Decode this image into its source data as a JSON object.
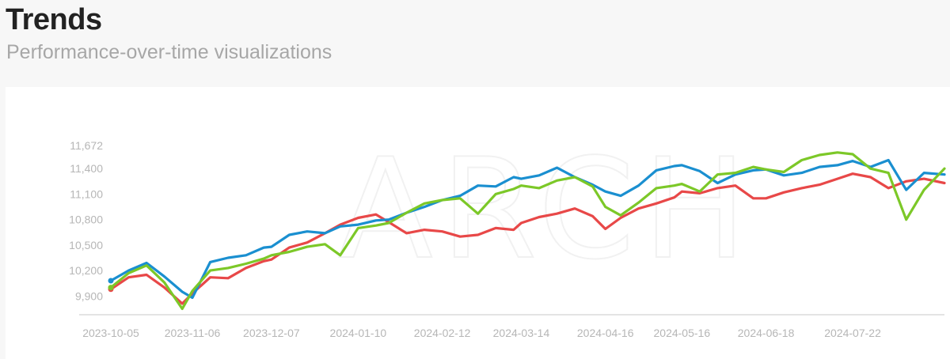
{
  "header": {
    "title": "Trends",
    "subtitle": "Performance-over-time visualizations"
  },
  "chart_data": {
    "type": "line",
    "title": "",
    "xlabel": "",
    "ylabel": "",
    "grid": false,
    "legend": "none",
    "x_ticks": [
      "2023-10-05",
      "2023-11-06",
      "2023-12-07",
      "2024-01-10",
      "2024-02-12",
      "2024-03-14",
      "2024-04-16",
      "2024-05-16",
      "2024-06-18",
      "2024-07-22"
    ],
    "y_ticks": [
      9900,
      10200,
      10500,
      10800,
      11100,
      11400,
      11672
    ],
    "y_tick_labels": [
      "9,900",
      "10,200",
      "10,500",
      "10,800",
      "11,100",
      "11,400",
      "11,672"
    ],
    "ylim": [
      9680,
      11672
    ],
    "x_range": [
      "2023-10-05",
      "2024-08-27"
    ],
    "watermark": "ARCH",
    "series": [
      {
        "color": "#e84848",
        "points": [
          [
            "2023-10-05",
            9980
          ],
          [
            "2023-10-12",
            10120
          ],
          [
            "2023-10-19",
            10150
          ],
          [
            "2023-10-26",
            10000
          ],
          [
            "2023-11-02",
            9810
          ],
          [
            "2023-11-06",
            9930
          ],
          [
            "2023-11-13",
            10120
          ],
          [
            "2023-11-20",
            10110
          ],
          [
            "2023-11-27",
            10230
          ],
          [
            "2023-12-04",
            10310
          ],
          [
            "2023-12-07",
            10330
          ],
          [
            "2023-12-14",
            10470
          ],
          [
            "2023-12-21",
            10530
          ],
          [
            "2023-12-28",
            10640
          ],
          [
            "2024-01-03",
            10740
          ],
          [
            "2024-01-10",
            10820
          ],
          [
            "2024-01-17",
            10860
          ],
          [
            "2024-01-22",
            10770
          ],
          [
            "2024-01-29",
            10640
          ],
          [
            "2024-02-05",
            10680
          ],
          [
            "2024-02-12",
            10660
          ],
          [
            "2024-02-19",
            10600
          ],
          [
            "2024-02-26",
            10620
          ],
          [
            "2024-03-04",
            10700
          ],
          [
            "2024-03-11",
            10680
          ],
          [
            "2024-03-14",
            10760
          ],
          [
            "2024-03-21",
            10830
          ],
          [
            "2024-03-28",
            10870
          ],
          [
            "2024-04-04",
            10930
          ],
          [
            "2024-04-11",
            10840
          ],
          [
            "2024-04-16",
            10690
          ],
          [
            "2024-04-22",
            10820
          ],
          [
            "2024-04-29",
            10930
          ],
          [
            "2024-05-06",
            10990
          ],
          [
            "2024-05-13",
            11060
          ],
          [
            "2024-05-16",
            11130
          ],
          [
            "2024-05-23",
            11110
          ],
          [
            "2024-05-30",
            11170
          ],
          [
            "2024-06-06",
            11200
          ],
          [
            "2024-06-13",
            11050
          ],
          [
            "2024-06-18",
            11050
          ],
          [
            "2024-06-25",
            11120
          ],
          [
            "2024-07-02",
            11170
          ],
          [
            "2024-07-09",
            11210
          ],
          [
            "2024-07-16",
            11280
          ],
          [
            "2024-07-22",
            11340
          ],
          [
            "2024-07-29",
            11300
          ],
          [
            "2024-08-05",
            11170
          ],
          [
            "2024-08-12",
            11250
          ],
          [
            "2024-08-19",
            11280
          ],
          [
            "2024-08-27",
            11230
          ]
        ]
      },
      {
        "color": "#1a8fd0",
        "points": [
          [
            "2023-10-05",
            10080
          ],
          [
            "2023-10-12",
            10200
          ],
          [
            "2023-10-19",
            10290
          ],
          [
            "2023-10-26",
            10130
          ],
          [
            "2023-11-02",
            9950
          ],
          [
            "2023-11-06",
            9880
          ],
          [
            "2023-11-13",
            10300
          ],
          [
            "2023-11-20",
            10350
          ],
          [
            "2023-11-27",
            10380
          ],
          [
            "2023-12-04",
            10470
          ],
          [
            "2023-12-07",
            10480
          ],
          [
            "2023-12-14",
            10620
          ],
          [
            "2023-12-21",
            10660
          ],
          [
            "2023-12-28",
            10640
          ],
          [
            "2024-01-03",
            10720
          ],
          [
            "2024-01-10",
            10740
          ],
          [
            "2024-01-17",
            10790
          ],
          [
            "2024-01-22",
            10800
          ],
          [
            "2024-01-29",
            10880
          ],
          [
            "2024-02-05",
            10950
          ],
          [
            "2024-02-12",
            11030
          ],
          [
            "2024-02-19",
            11080
          ],
          [
            "2024-02-26",
            11200
          ],
          [
            "2024-03-04",
            11190
          ],
          [
            "2024-03-11",
            11300
          ],
          [
            "2024-03-14",
            11280
          ],
          [
            "2024-03-21",
            11320
          ],
          [
            "2024-03-28",
            11410
          ],
          [
            "2024-04-04",
            11300
          ],
          [
            "2024-04-11",
            11210
          ],
          [
            "2024-04-16",
            11130
          ],
          [
            "2024-04-22",
            11080
          ],
          [
            "2024-04-29",
            11200
          ],
          [
            "2024-05-06",
            11380
          ],
          [
            "2024-05-13",
            11430
          ],
          [
            "2024-05-16",
            11440
          ],
          [
            "2024-05-23",
            11370
          ],
          [
            "2024-05-30",
            11230
          ],
          [
            "2024-06-06",
            11330
          ],
          [
            "2024-06-13",
            11380
          ],
          [
            "2024-06-18",
            11390
          ],
          [
            "2024-06-25",
            11320
          ],
          [
            "2024-07-02",
            11350
          ],
          [
            "2024-07-09",
            11420
          ],
          [
            "2024-07-16",
            11440
          ],
          [
            "2024-07-22",
            11490
          ],
          [
            "2024-07-29",
            11420
          ],
          [
            "2024-08-05",
            11500
          ],
          [
            "2024-08-12",
            11150
          ],
          [
            "2024-08-19",
            11350
          ],
          [
            "2024-08-27",
            11330
          ]
        ]
      },
      {
        "color": "#7cc828",
        "points": [
          [
            "2023-10-05",
            10000
          ],
          [
            "2023-10-12",
            10170
          ],
          [
            "2023-10-19",
            10260
          ],
          [
            "2023-10-26",
            10060
          ],
          [
            "2023-11-02",
            9750
          ],
          [
            "2023-11-06",
            9960
          ],
          [
            "2023-11-13",
            10200
          ],
          [
            "2023-11-20",
            10230
          ],
          [
            "2023-11-27",
            10280
          ],
          [
            "2023-12-04",
            10340
          ],
          [
            "2023-12-07",
            10380
          ],
          [
            "2023-12-14",
            10420
          ],
          [
            "2023-12-21",
            10480
          ],
          [
            "2023-12-28",
            10510
          ],
          [
            "2024-01-03",
            10380
          ],
          [
            "2024-01-10",
            10700
          ],
          [
            "2024-01-17",
            10730
          ],
          [
            "2024-01-22",
            10760
          ],
          [
            "2024-01-29",
            10880
          ],
          [
            "2024-02-05",
            10990
          ],
          [
            "2024-02-12",
            11030
          ],
          [
            "2024-02-19",
            11050
          ],
          [
            "2024-02-26",
            10870
          ],
          [
            "2024-03-04",
            11100
          ],
          [
            "2024-03-11",
            11160
          ],
          [
            "2024-03-14",
            11200
          ],
          [
            "2024-03-21",
            11170
          ],
          [
            "2024-03-28",
            11260
          ],
          [
            "2024-04-04",
            11300
          ],
          [
            "2024-04-11",
            11190
          ],
          [
            "2024-04-16",
            10950
          ],
          [
            "2024-04-22",
            10850
          ],
          [
            "2024-04-29",
            11000
          ],
          [
            "2024-05-06",
            11170
          ],
          [
            "2024-05-13",
            11200
          ],
          [
            "2024-05-16",
            11220
          ],
          [
            "2024-05-23",
            11130
          ],
          [
            "2024-05-30",
            11330
          ],
          [
            "2024-06-06",
            11350
          ],
          [
            "2024-06-13",
            11420
          ],
          [
            "2024-06-18",
            11390
          ],
          [
            "2024-06-25",
            11360
          ],
          [
            "2024-07-02",
            11500
          ],
          [
            "2024-07-09",
            11560
          ],
          [
            "2024-07-16",
            11590
          ],
          [
            "2024-07-22",
            11570
          ],
          [
            "2024-07-29",
            11400
          ],
          [
            "2024-08-05",
            11350
          ],
          [
            "2024-08-12",
            10800
          ],
          [
            "2024-08-19",
            11150
          ],
          [
            "2024-08-27",
            11400
          ]
        ]
      }
    ]
  }
}
